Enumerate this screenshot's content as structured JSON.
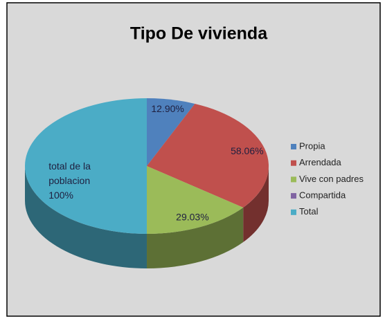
{
  "chart_data": {
    "type": "pie",
    "title": "Tipo De vivienda",
    "categories": [
      "Propia",
      "Arrendada",
      "Vive con padres",
      "Compartida",
      "Total"
    ],
    "values": [
      12.9,
      58.06,
      29.03,
      0,
      100
    ],
    "value_labels": [
      "12.90%",
      "58.06%",
      "29.03%",
      null,
      "total de la\npoblacion\n100%"
    ],
    "colors": [
      "#4f81bd",
      "#c0504d",
      "#9bbb59",
      "#8064a2",
      "#4bacc6"
    ],
    "legend": "right"
  }
}
